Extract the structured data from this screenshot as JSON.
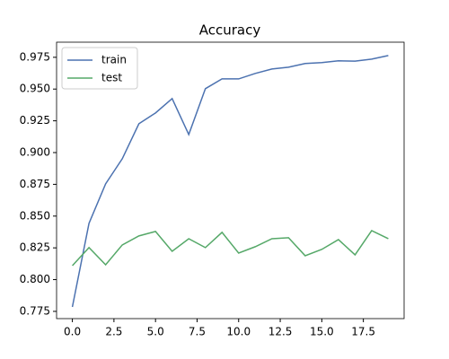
{
  "chart_data": {
    "type": "line",
    "title": "Accuracy",
    "x": [
      0,
      1,
      2,
      3,
      4,
      5,
      6,
      7,
      8,
      9,
      10,
      11,
      12,
      13,
      14,
      15,
      16,
      17,
      18,
      19
    ],
    "series": [
      {
        "name": "train",
        "color": "#4c72b0",
        "values": [
          0.7785,
          0.8443,
          0.8754,
          0.8951,
          0.9227,
          0.9312,
          0.9425,
          0.9142,
          0.9503,
          0.958,
          0.958,
          0.9623,
          0.9658,
          0.9672,
          0.9701,
          0.9708,
          0.9722,
          0.972,
          0.9736,
          0.9764
        ]
      },
      {
        "name": "test",
        "color": "#55a868",
        "values": [
          0.811,
          0.8252,
          0.8117,
          0.8273,
          0.8344,
          0.8379,
          0.8223,
          0.8322,
          0.8252,
          0.8372,
          0.8209,
          0.8259,
          0.8322,
          0.833,
          0.8188,
          0.8238,
          0.8315,
          0.8195,
          0.8386,
          0.8322
        ]
      }
    ],
    "xlim": [
      -0.95,
      19.95
    ],
    "xticks": [
      {
        "value": 0,
        "label": "0.0"
      },
      2.5,
      {
        "value": 5,
        "label": "5.0"
      },
      7.5,
      {
        "value": 10,
        "label": "10.0"
      },
      12.5,
      {
        "value": 15,
        "label": "15.0"
      },
      17.5
    ],
    "ylim": [
      0.7693,
      0.9869
    ],
    "yticks": [
      0.775,
      {
        "value": 0.8,
        "label": "0.800"
      },
      0.825,
      {
        "value": 0.85,
        "label": "0.850"
      },
      0.875,
      {
        "value": 0.9,
        "label": "0.900"
      },
      0.925,
      {
        "value": 0.95,
        "label": "0.950"
      },
      0.975
    ],
    "grid": false,
    "legend": "upper-left"
  }
}
